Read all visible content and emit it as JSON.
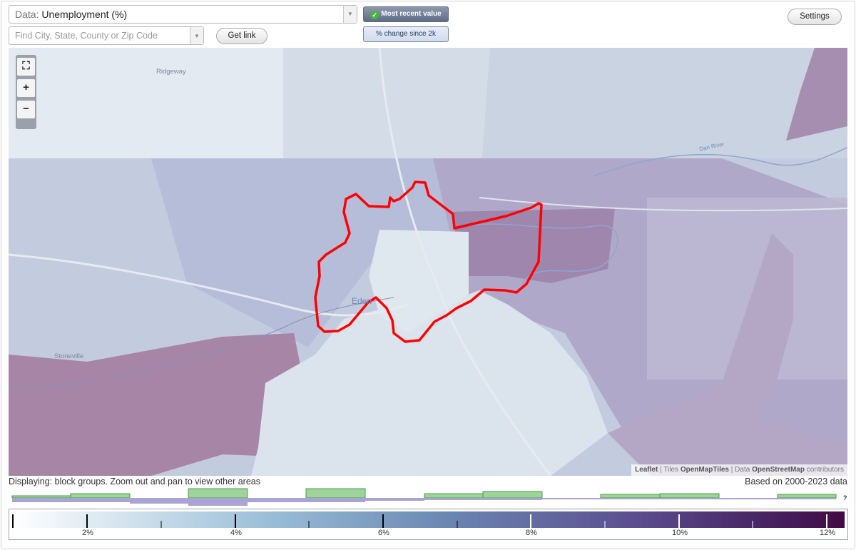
{
  "controls": {
    "data_prefix": "Data:",
    "data_value": "Unemployment (%)",
    "search_placeholder": "Find City, State, County or Zip Code",
    "get_link": "Get link",
    "settings": "Settings",
    "most_recent": "Most recent value",
    "pct_change": "% change since 2k"
  },
  "map": {
    "places": [
      "Ridgeway",
      "Eden",
      "Stoneville"
    ],
    "river": "Dan River",
    "attribution": {
      "leaflet": "Leaflet",
      "tiles_prefix": "Tiles",
      "tiles": "OpenMapTiles",
      "data_prefix": "Data",
      "data": "OpenStreetMap",
      "suffix": "contributors"
    },
    "colors": {
      "low": "#dfe7ef",
      "mid": "#b6c1d6",
      "high": "#8a7ba6",
      "highlight_outline": "#ff0000"
    }
  },
  "footer": {
    "displaying": "Displaying: block groups. Zoom out and pan to view other areas",
    "based_on": "Based on 2000-2023 data",
    "unknown_marker": "?"
  },
  "legend": {
    "ticks": [
      "2%",
      "4%",
      "6%",
      "8%",
      "10%",
      "12%"
    ],
    "gradient_colors": [
      "#ffffff",
      "#9cc0d9",
      "#6a87b2",
      "#5b4d8f",
      "#461f5e",
      "#420a44"
    ]
  }
}
